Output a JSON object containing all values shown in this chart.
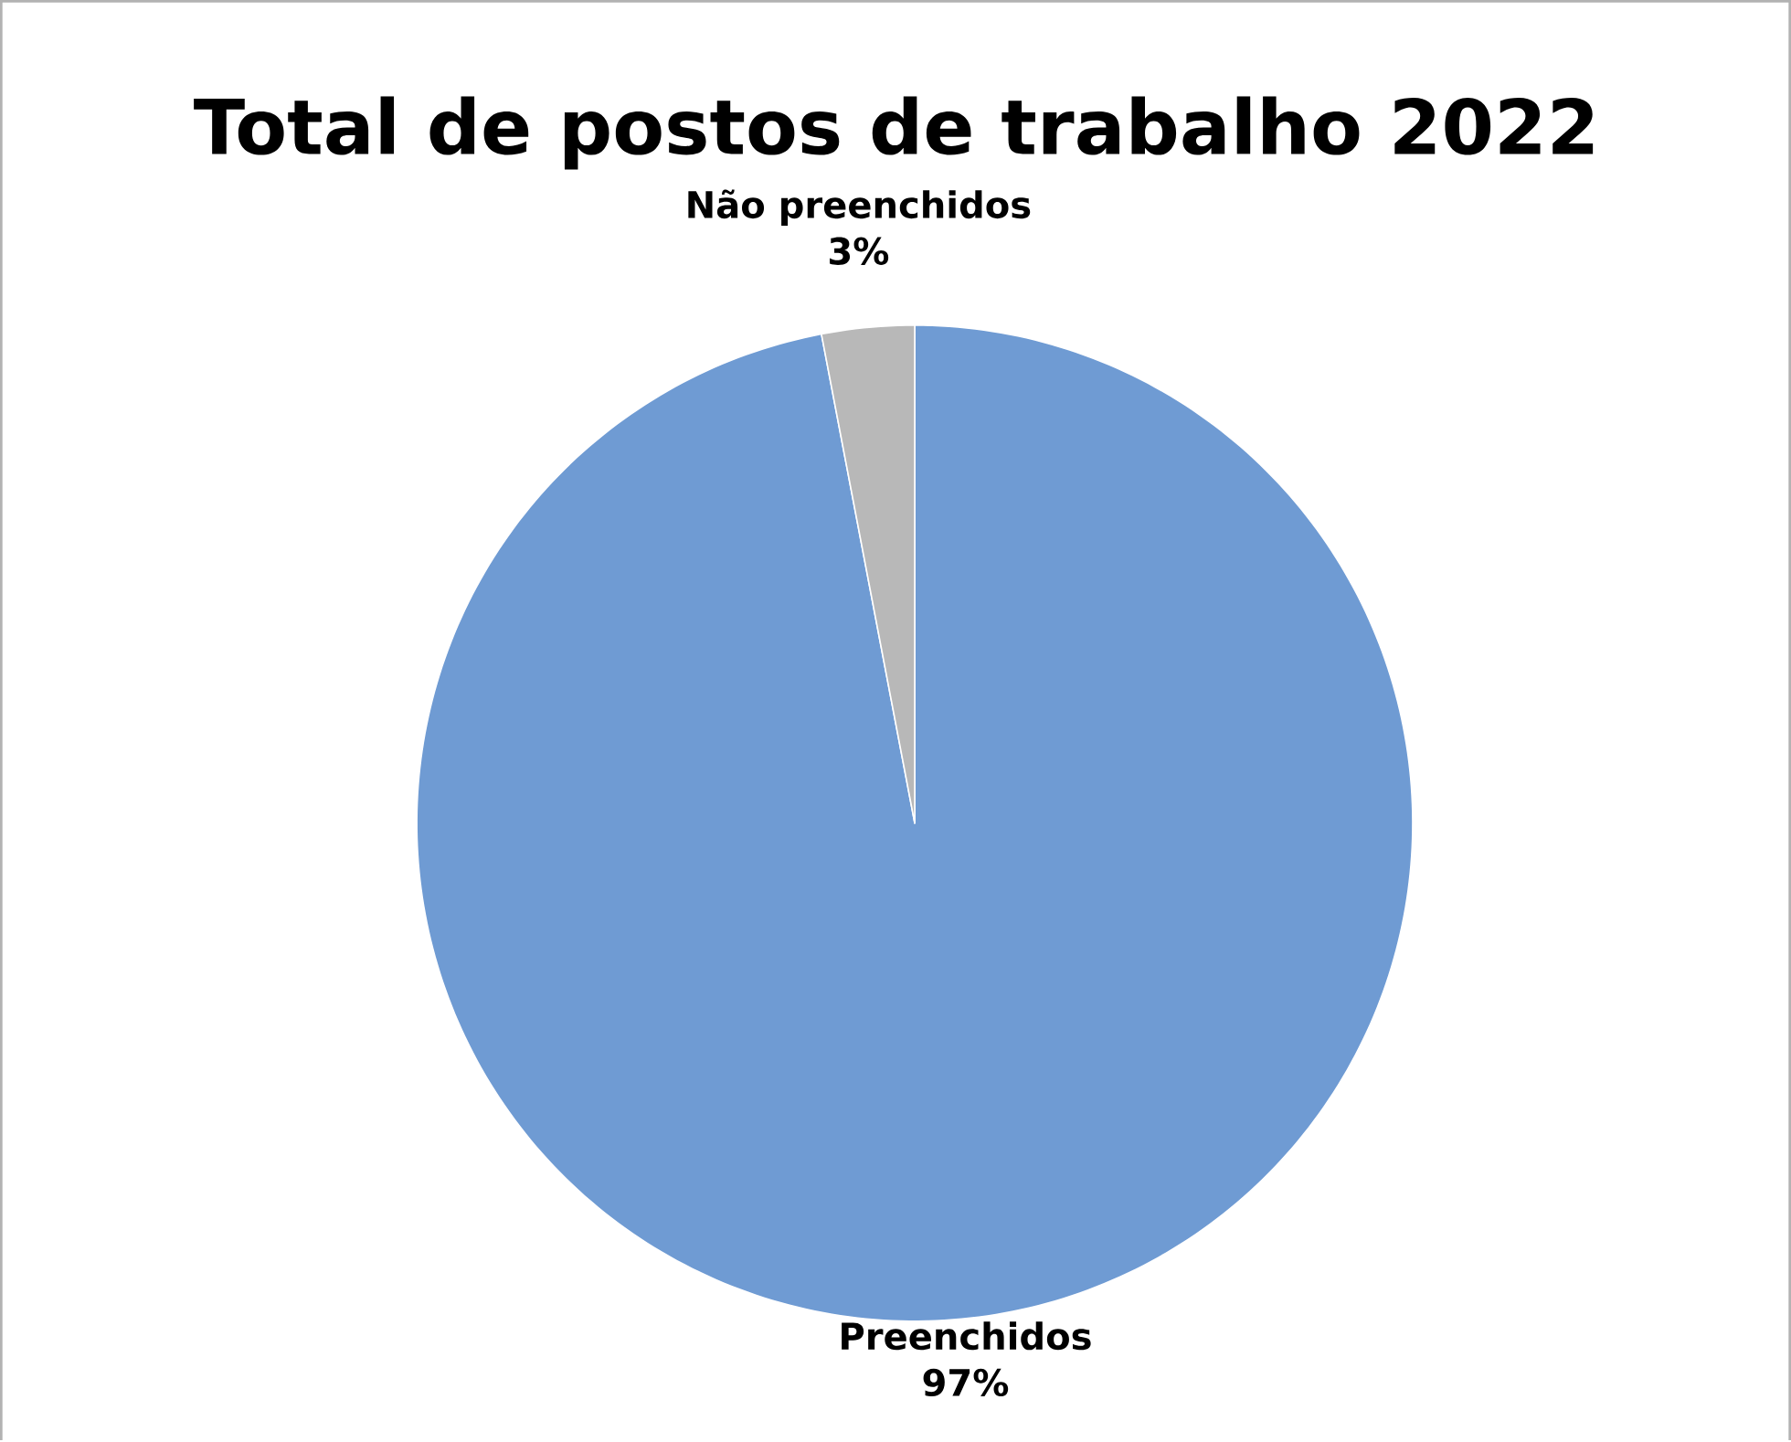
{
  "chart_data": {
    "type": "pie",
    "title": "Total de postos de trabalho 2022",
    "categories": [
      "Preenchidos",
      "Não preenchidos"
    ],
    "values": [
      97,
      3
    ],
    "value_labels": [
      "97%",
      "3%"
    ],
    "colors": [
      "#6f9bd3",
      "#b8b8b8"
    ]
  }
}
